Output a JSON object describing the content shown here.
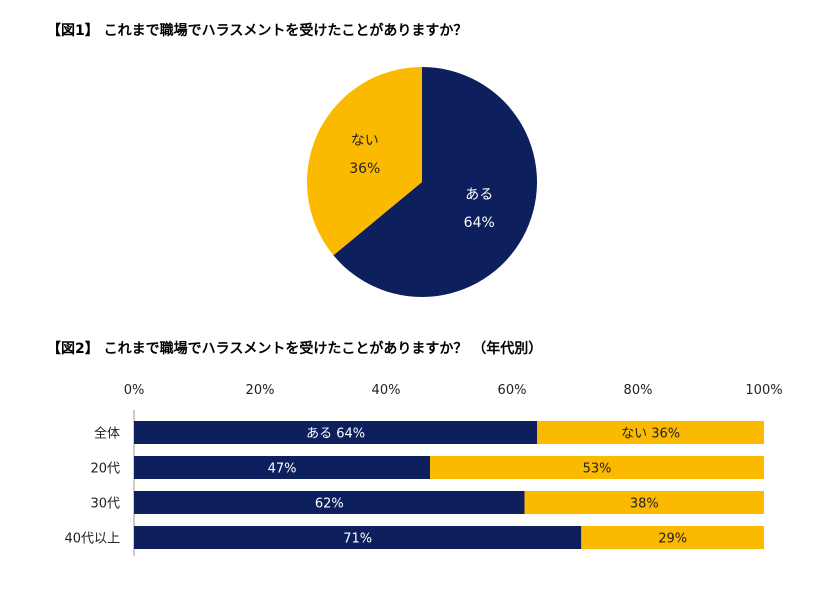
{
  "colors": {
    "yes": "#0D1F5C",
    "no": "#FBBA00",
    "axis": "#999999"
  },
  "chart_data": [
    {
      "type": "pie",
      "title": "【図1】 これまで職場でハラスメントを受けたことがありますか？",
      "slices": [
        {
          "label": "ある",
          "value": 64,
          "value_label": "64%"
        },
        {
          "label": "ない",
          "value": 36,
          "value_label": "36%"
        }
      ]
    },
    {
      "type": "bar",
      "orientation": "horizontal",
      "stacked": "percent",
      "title": "【図2】 これまで職場でハラスメントを受けたことがありますか？ （年代別）",
      "xlim": [
        0,
        100
      ],
      "ticks": [
        "0%",
        "20%",
        "40%",
        "60%",
        "80%",
        "100%"
      ],
      "categories": [
        "全体",
        "20代",
        "30代",
        "40代以上"
      ],
      "series": [
        {
          "name": "ある",
          "values": [
            64,
            47,
            62,
            71
          ],
          "labels": [
            "ある 64%",
            "47%",
            "62%",
            "71%"
          ]
        },
        {
          "name": "ない",
          "values": [
            36,
            53,
            38,
            29
          ],
          "labels": [
            "ない 36%",
            "53%",
            "38%",
            "29%"
          ]
        }
      ]
    }
  ]
}
